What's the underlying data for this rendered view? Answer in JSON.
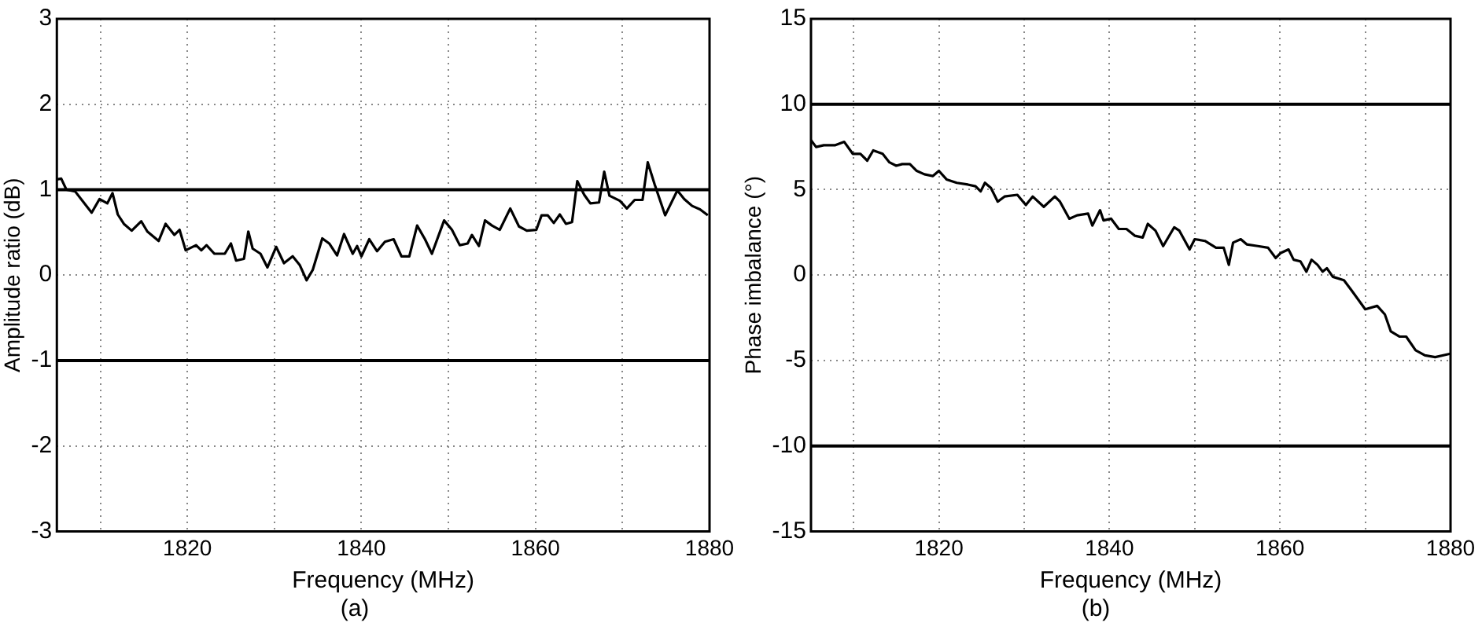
{
  "chart_data": [
    {
      "type": "line",
      "xlabel": "Frequency (MHz)",
      "ylabel": "Amplitude ratio (dB)",
      "annotations": [
        "(a)"
      ],
      "x": [
        1805,
        1805.5,
        1806.1,
        1807.1,
        1809,
        1809.9,
        1810.8,
        1811.4,
        1812,
        1812.7,
        1813.6,
        1814.7,
        1815.4,
        1816.7,
        1817.5,
        1818.5,
        1819.1,
        1819.8,
        1821,
        1821.6,
        1822.2,
        1823.1,
        1824.3,
        1825,
        1825.6,
        1826.5,
        1827,
        1827.5,
        1828.4,
        1829.2,
        1830.2,
        1831.1,
        1832.1,
        1832.9,
        1833.7,
        1834.4,
        1835.5,
        1836.3,
        1837.2,
        1838,
        1839,
        1839.5,
        1840,
        1840.9,
        1841.8,
        1842.7,
        1843.7,
        1844.6,
        1845.5,
        1846.4,
        1847.3,
        1848.1,
        1849.5,
        1850.4,
        1851.3,
        1852.2,
        1852.7,
        1853.5,
        1854.2,
        1855,
        1855.9,
        1857.1,
        1858.1,
        1859,
        1860.1,
        1860.7,
        1861.4,
        1862.1,
        1862.8,
        1863.5,
        1864.2,
        1864.8,
        1865.6,
        1866.3,
        1867.3,
        1867.9,
        1868.5,
        1869.7,
        1870.5,
        1871.4,
        1872.3,
        1872.9,
        1873.7,
        1874.9,
        1876.3,
        1877.1,
        1878,
        1878.9,
        1879.8
      ],
      "series": [
        {
          "color": "#000000",
          "values": [
            1.12,
            1.13,
            1.0,
            0.98,
            0.73,
            0.89,
            0.84,
            0.96,
            0.71,
            0.6,
            0.52,
            0.63,
            0.51,
            0.4,
            0.6,
            0.47,
            0.53,
            0.29,
            0.35,
            0.29,
            0.35,
            0.25,
            0.25,
            0.37,
            0.17,
            0.19,
            0.51,
            0.31,
            0.25,
            0.09,
            0.33,
            0.14,
            0.22,
            0.12,
            -0.06,
            0.06,
            0.43,
            0.37,
            0.23,
            0.48,
            0.25,
            0.34,
            0.22,
            0.42,
            0.28,
            0.39,
            0.42,
            0.22,
            0.22,
            0.58,
            0.42,
            0.25,
            0.64,
            0.53,
            0.35,
            0.37,
            0.47,
            0.34,
            0.64,
            0.58,
            0.53,
            0.78,
            0.57,
            0.52,
            0.53,
            0.7,
            0.7,
            0.61,
            0.71,
            0.6,
            0.62,
            1.1,
            0.94,
            0.84,
            0.85,
            1.21,
            0.93,
            0.87,
            0.78,
            0.88,
            0.88,
            1.32,
            1.06,
            0.7,
            0.99,
            0.89,
            0.81,
            0.77,
            0.7
          ]
        }
      ],
      "xlim": [
        1805,
        1880
      ],
      "xticks": [
        {
          "value": 1810,
          "label": null
        },
        1820,
        {
          "value": 1830,
          "label": null
        },
        1840,
        {
          "value": 1850,
          "label": null
        },
        1860,
        {
          "value": 1870,
          "label": null
        },
        1880
      ],
      "ylim": [
        -3,
        3
      ],
      "yticks": [
        -3,
        -2,
        -1,
        0,
        1,
        2,
        3
      ],
      "ref_lines": [
        {
          "axis": "y",
          "value": 1,
          "color": "#000000"
        },
        {
          "axis": "y",
          "value": -1,
          "color": "#000000"
        }
      ],
      "grid": true,
      "legend": false,
      "marker": "none",
      "line_style": "solid"
    },
    {
      "type": "line",
      "xlabel": "Frequency (MHz)",
      "ylabel": "Phase imbalance (°)",
      "annotations": [
        "(b)"
      ],
      "x": [
        1805,
        1805.6,
        1806.5,
        1807.8,
        1808.9,
        1809.9,
        1810.8,
        1811.6,
        1812.3,
        1813.4,
        1814.2,
        1815,
        1815.7,
        1816.6,
        1817.4,
        1818.3,
        1819.3,
        1820,
        1820.9,
        1822.1,
        1823.4,
        1824.3,
        1824.9,
        1825.4,
        1826.1,
        1826.9,
        1827.7,
        1829.2,
        1830.2,
        1831,
        1832.3,
        1833.6,
        1834.2,
        1835.3,
        1836.2,
        1837.5,
        1838,
        1838.9,
        1839.3,
        1840.2,
        1841.1,
        1842,
        1843,
        1843.9,
        1844.5,
        1845.4,
        1846.3,
        1847.6,
        1848.2,
        1849.4,
        1850,
        1851.2,
        1852.5,
        1853.4,
        1854,
        1854.5,
        1855.4,
        1856.1,
        1857.4,
        1858.6,
        1859.5,
        1860.1,
        1861,
        1861.6,
        1862.4,
        1863.1,
        1863.7,
        1864.4,
        1865,
        1865.5,
        1866.2,
        1867.5,
        1868.4,
        1870,
        1871.4,
        1872.3,
        1873,
        1874,
        1874.8,
        1875.9,
        1877,
        1878.2,
        1880
      ],
      "series": [
        {
          "color": "#000000",
          "values": [
            7.9,
            7.5,
            7.6,
            7.6,
            7.8,
            7.1,
            7.1,
            6.7,
            7.3,
            7.1,
            6.6,
            6.4,
            6.5,
            6.5,
            6.1,
            5.9,
            5.8,
            6.1,
            5.6,
            5.4,
            5.3,
            5.2,
            4.9,
            5.4,
            5.1,
            4.3,
            4.6,
            4.7,
            4.1,
            4.6,
            4.0,
            4.6,
            4.3,
            3.3,
            3.5,
            3.6,
            2.9,
            3.8,
            3.2,
            3.3,
            2.7,
            2.7,
            2.3,
            2.2,
            3.0,
            2.6,
            1.7,
            2.8,
            2.6,
            1.5,
            2.1,
            2.0,
            1.6,
            1.6,
            0.6,
            1.9,
            2.1,
            1.8,
            1.7,
            1.6,
            1.0,
            1.3,
            1.5,
            0.9,
            0.8,
            0.2,
            0.9,
            0.6,
            0.2,
            0.4,
            -0.1,
            -0.3,
            -0.9,
            -2.0,
            -1.8,
            -2.3,
            -3.3,
            -3.6,
            -3.6,
            -4.4,
            -4.7,
            -4.8,
            -4.6
          ]
        }
      ],
      "xlim": [
        1805,
        1880
      ],
      "xticks": [
        {
          "value": 1810,
          "label": null
        },
        1820,
        {
          "value": 1830,
          "label": null
        },
        1840,
        {
          "value": 1850,
          "label": null
        },
        1860,
        {
          "value": 1870,
          "label": null
        },
        1880
      ],
      "ylim": [
        -15,
        15
      ],
      "yticks": [
        -15,
        -10,
        -5,
        0,
        5,
        10,
        15
      ],
      "ref_lines": [
        {
          "axis": "y",
          "value": 10,
          "color": "#000000"
        },
        {
          "axis": "y",
          "value": -10,
          "color": "#000000"
        }
      ],
      "grid": true,
      "legend": false,
      "marker": "none",
      "line_style": "solid"
    }
  ]
}
